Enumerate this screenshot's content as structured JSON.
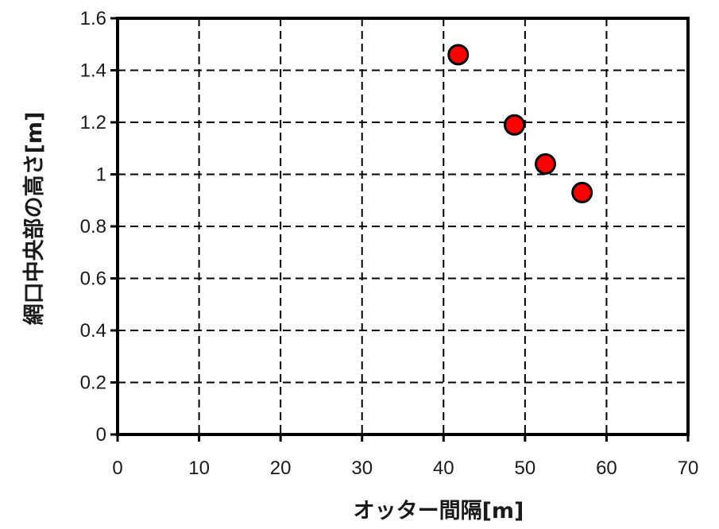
{
  "chart_data": {
    "type": "scatter",
    "xlabel": "オッター間隔[m]",
    "ylabel": "網口中央部の高さ[m]",
    "xlim": [
      0,
      70
    ],
    "ylim": [
      0,
      1.6
    ],
    "x_ticks": [
      "0",
      "10",
      "20",
      "30",
      "40",
      "50",
      "60",
      "70"
    ],
    "y_ticks": [
      "0",
      "0.2",
      "0.4",
      "0.6",
      "0.8",
      "1",
      "1.2",
      "1.4",
      "1.6"
    ],
    "grid": "dashed",
    "legend": "none",
    "series": [
      {
        "x": [
          41.8,
          48.7,
          52.5,
          57.0
        ],
        "y": [
          1.46,
          1.19,
          1.04,
          0.93
        ],
        "marker": "circle",
        "color": "#ff0000",
        "edgecolor": "#000000"
      }
    ]
  }
}
